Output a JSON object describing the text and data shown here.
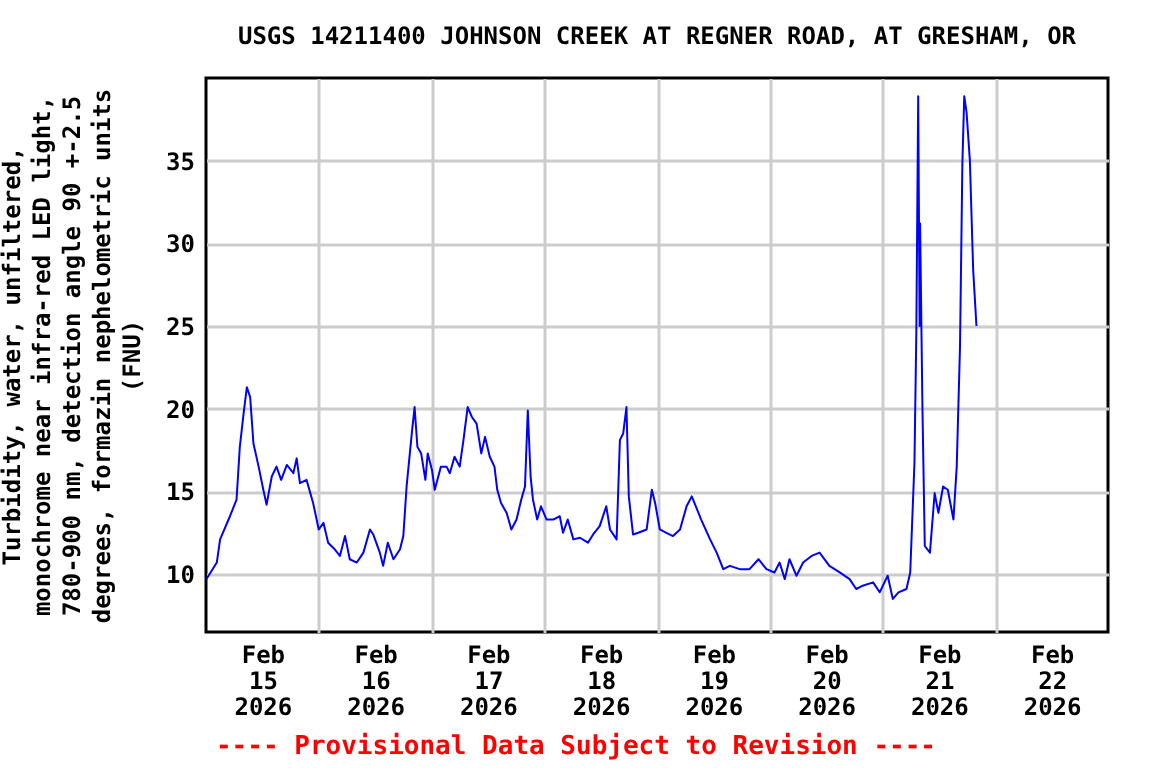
{
  "chart_data": {
    "type": "line",
    "title": "USGS 14211400 JOHNSON CREEK AT REGNER ROAD, AT GRESHAM, OR",
    "ylabel": "Turbidity, water, unfiltered,\nmonochrome near infra-red LED light,\n780-900 nm, detection angle 90 +-2.5\ndegrees, formazin nephelometric units\n(FNU)",
    "annotations": [
      "---- Provisional Data Subject to Revision ----"
    ],
    "xlim": [
      "2026-02-15",
      "2026-02-23"
    ],
    "xticks": [
      {
        "value": "2026-02-15T12:00",
        "label": "Feb\n15\n2026"
      },
      {
        "value": "2026-02-16T12:00",
        "label": "Feb\n16\n2026"
      },
      {
        "value": "2026-02-17T12:00",
        "label": "Feb\n17\n2026"
      },
      {
        "value": "2026-02-18T12:00",
        "label": "Feb\n18\n2026"
      },
      {
        "value": "2026-02-19T12:00",
        "label": "Feb\n19\n2026"
      },
      {
        "value": "2026-02-20T12:00",
        "label": "Feb\n20\n2026"
      },
      {
        "value": "2026-02-21T12:00",
        "label": "Feb\n21\n2026"
      },
      {
        "value": "2026-02-22T12:00",
        "label": "Feb\n22\n2026"
      },
      {
        "value": "2026-02-16",
        "label": null
      },
      {
        "value": "2026-02-17",
        "label": null
      },
      {
        "value": "2026-02-18",
        "label": null
      },
      {
        "value": "2026-02-19",
        "label": null
      },
      {
        "value": "2026-02-20",
        "label": null
      },
      {
        "value": "2026-02-21",
        "label": null
      },
      {
        "value": "2026-02-22",
        "label": null
      }
    ],
    "ylim": [
      6.5,
      40
    ],
    "yticks": [
      10,
      15,
      20,
      25,
      30,
      35
    ],
    "grid": true,
    "series": [
      {
        "color": "#0000ff",
        "x": [
          "2026-02-15T00:06",
          "2026-02-15T02:18",
          "2026-02-15T03:00",
          "2026-02-15T05:06",
          "2026-02-15T06:30",
          "2026-02-15T07:12",
          "2026-02-15T08:00",
          "2026-02-15T08:42",
          "2026-02-15T09:24",
          "2026-02-15T10:06",
          "2026-02-15T11:12",
          "2026-02-15T12:12",
          "2026-02-15T12:54",
          "2026-02-15T14:00",
          "2026-02-15T15:00",
          "2026-02-15T16:00",
          "2026-02-15T17:12",
          "2026-02-15T18:36",
          "2026-02-15T19:18",
          "2026-02-15T20:00",
          "2026-02-15T21:24",
          "2026-02-15T22:48",
          "2026-02-16T00:00",
          "2026-02-16T01:00",
          "2026-02-16T02:00",
          "2026-02-16T03:24",
          "2026-02-16T04:30",
          "2026-02-16T05:36",
          "2026-02-16T06:36",
          "2026-02-16T08:06",
          "2026-02-16T09:30",
          "2026-02-16T10:54",
          "2026-02-16T11:36",
          "2026-02-16T13:00",
          "2026-02-16T13:42",
          "2026-02-16T14:42",
          "2026-02-16T15:54",
          "2026-02-16T17:18",
          "2026-02-16T18:00",
          "2026-02-16T18:42",
          "2026-02-16T19:48",
          "2026-02-16T20:24",
          "2026-02-16T21:00",
          "2026-02-16T21:48",
          "2026-02-16T22:42",
          "2026-02-16T23:12",
          "2026-02-17T00:06",
          "2026-02-17T00:42",
          "2026-02-17T02:00",
          "2026-02-17T03:12",
          "2026-02-17T03:54",
          "2026-02-17T04:54",
          "2026-02-17T06:00",
          "2026-02-17T06:48",
          "2026-02-17T07:42",
          "2026-02-17T08:36",
          "2026-02-17T09:36",
          "2026-02-17T10:36",
          "2026-02-17T11:24",
          "2026-02-17T12:24",
          "2026-02-17T13:24",
          "2026-02-17T14:00",
          "2026-02-17T14:48",
          "2026-02-17T16:00",
          "2026-02-17T17:00",
          "2026-02-17T18:06",
          "2026-02-17T19:06",
          "2026-02-17T19:54",
          "2026-02-17T20:30",
          "2026-02-17T21:06",
          "2026-02-17T21:36",
          "2026-02-17T22:30",
          "2026-02-17T23:18",
          "2026-02-18T00:30",
          "2026-02-18T01:54",
          "2026-02-18T03:18",
          "2026-02-18T04:00",
          "2026-02-18T05:00",
          "2026-02-18T06:12",
          "2026-02-18T07:36",
          "2026-02-18T09:18",
          "2026-02-18T10:24",
          "2026-02-18T11:48",
          "2026-02-18T13:12",
          "2026-02-18T14:00",
          "2026-02-18T15:24",
          "2026-02-18T16:06",
          "2026-02-18T16:48",
          "2026-02-18T17:30",
          "2026-02-18T18:00",
          "2026-02-18T18:54",
          "2026-02-18T20:00",
          "2026-02-18T21:48",
          "2026-02-18T22:54",
          "2026-02-18T23:36",
          "2026-02-19T00:36",
          "2026-02-19T02:00",
          "2026-02-19T03:24",
          "2026-02-19T04:54",
          "2026-02-19T06:18",
          "2026-02-19T07:24",
          "2026-02-19T08:24",
          "2026-02-19T09:24",
          "2026-02-19T11:18",
          "2026-02-19T12:42",
          "2026-02-19T14:06",
          "2026-02-19T15:30",
          "2026-02-19T17:36",
          "2026-02-19T19:42",
          "2026-02-19T21:36",
          "2026-02-19T23:18",
          "2026-02-20T01:00",
          "2026-02-20T02:06",
          "2026-02-20T03:12",
          "2026-02-20T04:12",
          "2026-02-20T05:42",
          "2026-02-20T07:06",
          "2026-02-20T08:54",
          "2026-02-20T10:36",
          "2026-02-20T12:42",
          "2026-02-20T14:54",
          "2026-02-20T17:00",
          "2026-02-20T18:24",
          "2026-02-20T19:48",
          "2026-02-20T22:00",
          "2026-02-20T23:24",
          "2026-02-21T01:06",
          "2026-02-21T02:12",
          "2026-02-21T03:24",
          "2026-02-21T05:06",
          "2026-02-21T05:54",
          "2026-02-21T06:48",
          "2026-02-21T07:12",
          "2026-02-21T07:36",
          "2026-02-21T07:54",
          "2026-02-21T08:00",
          "2026-02-21T08:30",
          "2026-02-21T09:00",
          "2026-02-21T10:06",
          "2026-02-21T11:06",
          "2026-02-21T11:54",
          "2026-02-21T12:54",
          "2026-02-21T13:54",
          "2026-02-21T15:06",
          "2026-02-21T15:48",
          "2026-02-21T16:30",
          "2026-02-21T17:00",
          "2026-02-21T17:24",
          "2026-02-21T17:54",
          "2026-02-21T18:36",
          "2026-02-21T19:18",
          "2026-02-21T20:00"
        ],
        "values": [
          9.7,
          10.7,
          12.1,
          13.5,
          14.5,
          17.7,
          19.7,
          21.3,
          20.7,
          17.9,
          16.5,
          15.1,
          14.2,
          15.9,
          16.5,
          15.7,
          16.6,
          16.1,
          17.0,
          15.5,
          15.7,
          14.3,
          12.7,
          13.1,
          11.9,
          11.5,
          11.1,
          12.3,
          10.9,
          10.7,
          11.3,
          12.7,
          12.4,
          11.3,
          10.5,
          11.9,
          10.9,
          11.5,
          12.3,
          15.3,
          18.5,
          20.1,
          17.7,
          17.3,
          15.7,
          17.3,
          16.3,
          15.1,
          16.5,
          16.5,
          16.1,
          17.1,
          16.5,
          18.1,
          20.1,
          19.5,
          19.1,
          17.3,
          18.3,
          17.1,
          16.5,
          15.1,
          14.3,
          13.7,
          12.7,
          13.3,
          14.5,
          15.3,
          19.9,
          15.9,
          14.5,
          13.3,
          14.1,
          13.3,
          13.3,
          13.5,
          12.5,
          13.3,
          12.1,
          12.2,
          11.9,
          12.4,
          12.9,
          14.1,
          12.7,
          12.1,
          18.1,
          18.5,
          20.1,
          14.7,
          12.4,
          12.5,
          12.7,
          15.1,
          14.3,
          12.7,
          12.5,
          12.3,
          12.7,
          14.1,
          14.7,
          14.0,
          13.3,
          12.1,
          11.3,
          10.3,
          10.5,
          10.3,
          10.3,
          10.9,
          10.3,
          10.1,
          10.7,
          9.7,
          10.9,
          9.9,
          10.7,
          11.1,
          11.3,
          10.5,
          10.1,
          9.7,
          9.1,
          9.3,
          9.5,
          8.9,
          9.9,
          8.5,
          8.9,
          9.1,
          10.1,
          16.7,
          24.6,
          38.9,
          25,
          31.2,
          20.1,
          11.7,
          11.3,
          14.9,
          13.7,
          15.3,
          15.1,
          13.3,
          16.5,
          23.8,
          34.8,
          38.9,
          37.9,
          35.0,
          28.4,
          25
        ]
      }
    ]
  }
}
